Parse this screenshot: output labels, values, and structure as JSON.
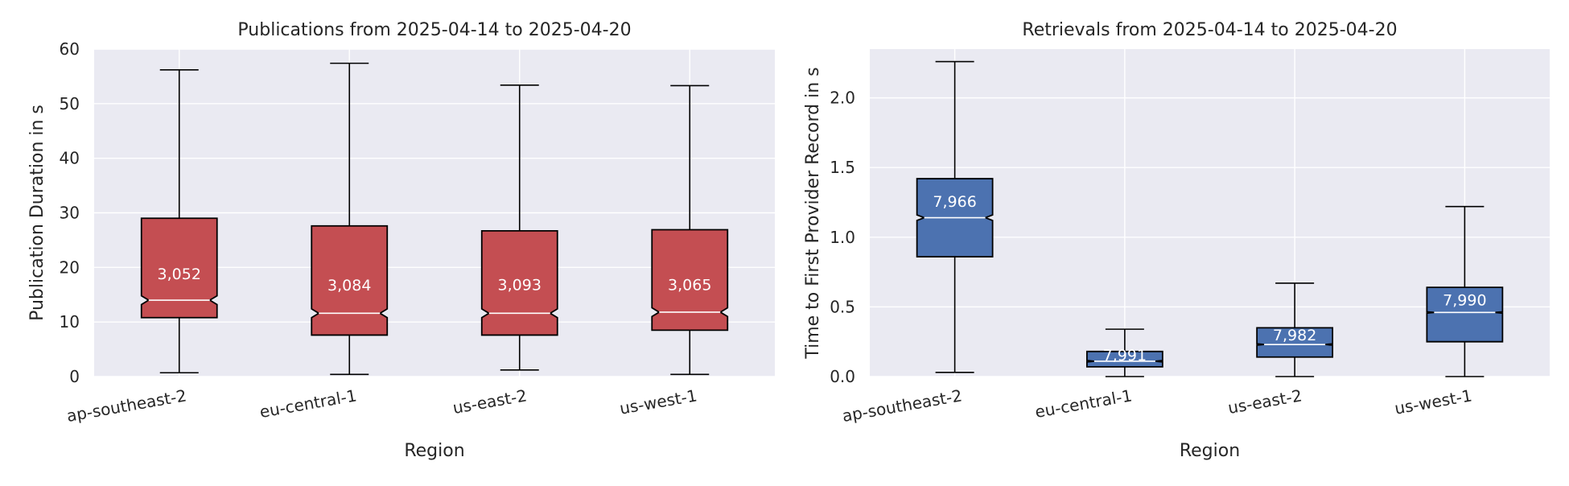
{
  "chart_data": [
    {
      "type": "boxplot",
      "title": "Publications from 2025-04-14 to 2025-04-20",
      "xlabel": "Region",
      "ylabel": "Publication Duration in s",
      "ylim": [
        0,
        60
      ],
      "yticks": [
        0,
        10,
        20,
        30,
        40,
        50,
        60
      ],
      "grid": true,
      "notched": true,
      "box_color": "#c44e52",
      "categories": [
        "ap-southeast-2",
        "eu-central-1",
        "us-east-2",
        "us-west-1"
      ],
      "boxes": [
        {
          "whisker_low": 0.7,
          "q1": 10.8,
          "median": 14.0,
          "q3": 29.0,
          "whisker_high": 56.2,
          "notch_low": 13.2,
          "notch_high": 14.8,
          "count_label": "3,052",
          "label_y": 18.9
        },
        {
          "whisker_low": 0.4,
          "q1": 7.6,
          "median": 11.6,
          "q3": 27.6,
          "whisker_high": 57.4,
          "notch_low": 10.8,
          "notch_high": 12.4,
          "count_label": "3,084",
          "label_y": 16.8
        },
        {
          "whisker_low": 1.2,
          "q1": 7.6,
          "median": 11.6,
          "q3": 26.7,
          "whisker_high": 53.4,
          "notch_low": 10.8,
          "notch_high": 12.4,
          "count_label": "3,093",
          "label_y": 16.9
        },
        {
          "whisker_low": 0.4,
          "q1": 8.5,
          "median": 11.8,
          "q3": 26.9,
          "whisker_high": 53.3,
          "notch_low": 11.0,
          "notch_high": 12.6,
          "count_label": "3,065",
          "label_y": 16.9
        }
      ]
    },
    {
      "type": "boxplot",
      "title": "Retrievals from 2025-04-14 to 2025-04-20",
      "xlabel": "Region",
      "ylabel": "Time to First Provider Record in s",
      "ylim": [
        0,
        2.35
      ],
      "yticks": [
        0.0,
        0.5,
        1.0,
        1.5,
        2.0
      ],
      "ytick_labels": [
        "0.0",
        "0.5",
        "1.0",
        "1.5",
        "2.0"
      ],
      "grid": true,
      "notched": true,
      "box_color": "#4c72b0",
      "categories": [
        "ap-southeast-2",
        "eu-central-1",
        "us-east-2",
        "us-west-1"
      ],
      "boxes": [
        {
          "whisker_low": 0.03,
          "q1": 0.86,
          "median": 1.14,
          "q3": 1.42,
          "whisker_high": 2.26,
          "notch_low": 1.12,
          "notch_high": 1.16,
          "count_label": "7,966",
          "label_y": 1.26
        },
        {
          "whisker_low": 0.0,
          "q1": 0.07,
          "median": 0.11,
          "q3": 0.18,
          "whisker_high": 0.34,
          "notch_low": 0.105,
          "notch_high": 0.115,
          "count_label": "7,991",
          "label_y": 0.155
        },
        {
          "whisker_low": 0.0,
          "q1": 0.14,
          "median": 0.23,
          "q3": 0.35,
          "whisker_high": 0.67,
          "notch_low": 0.225,
          "notch_high": 0.235,
          "count_label": "7,982",
          "label_y": 0.3
        },
        {
          "whisker_low": 0.0,
          "q1": 0.25,
          "median": 0.46,
          "q3": 0.64,
          "whisker_high": 1.22,
          "notch_low": 0.455,
          "notch_high": 0.465,
          "count_label": "7,990",
          "label_y": 0.55
        }
      ]
    }
  ],
  "colors": {
    "plot_bg": "#eaeaf2",
    "grid": "#ffffff",
    "text": "#262626",
    "edge": "#000000",
    "count_label": "#ffffff"
  }
}
